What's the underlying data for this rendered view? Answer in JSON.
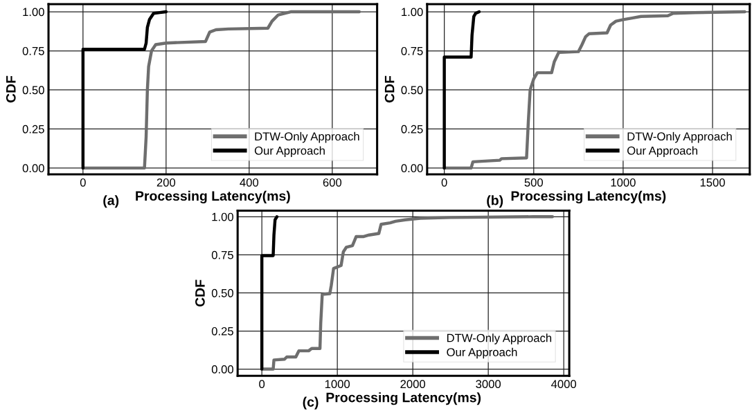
{
  "chart_data": [
    {
      "type": "line",
      "xlabel": "Processing Latency(ms)",
      "ylabel": "CDF",
      "annotations": [
        "(a)"
      ],
      "xlim": [
        -83,
        708
      ],
      "ylim": [
        -0.04,
        1.049
      ],
      "xticks": [
        0,
        200,
        400,
        600
      ],
      "yticks": [
        {
          "value": 0,
          "label": "0.00"
        },
        {
          "value": 0.25,
          "label": "0.25"
        },
        {
          "value": 0.5,
          "label": "0.50"
        },
        {
          "value": 0.75,
          "label": "0.75"
        },
        {
          "value": 1,
          "label": "1.00"
        }
      ],
      "grid": true,
      "legend": "bottom right",
      "series": [
        {
          "name": "DTW-Only Approach",
          "color": "#6e6e6e",
          "x": [
            0,
            148,
            152,
            155,
            158,
            165,
            175,
            200,
            295,
            305,
            320,
            350,
            445,
            455,
            470,
            500,
            665
          ],
          "values": [
            0,
            0,
            0.2,
            0.5,
            0.65,
            0.75,
            0.79,
            0.8,
            0.81,
            0.87,
            0.885,
            0.89,
            0.895,
            0.94,
            0.98,
            1.0,
            1.0
          ]
        },
        {
          "name": "Our Approach",
          "color": "#000000",
          "x": [
            0,
            0,
            148,
            152,
            155,
            160,
            170,
            185,
            200
          ],
          "values": [
            0,
            0.76,
            0.76,
            0.8,
            0.9,
            0.95,
            0.99,
            0.995,
            1.0
          ]
        }
      ]
    },
    {
      "type": "line",
      "xlabel": "Processing Latency(ms)",
      "ylabel": "CDF",
      "annotations": [
        "(b)"
      ],
      "xlim": [
        -96,
        1708
      ],
      "ylim": [
        -0.04,
        1.049
      ],
      "xticks": [
        0,
        500,
        1000,
        1500
      ],
      "yticks": [
        {
          "value": 0,
          "label": "0.00"
        },
        {
          "value": 0.25,
          "label": "0.25"
        },
        {
          "value": 0.5,
          "label": "0.50"
        },
        {
          "value": 0.75,
          "label": "0.75"
        },
        {
          "value": 1,
          "label": "1.00"
        }
      ],
      "grid": true,
      "legend": "bottom right",
      "series": [
        {
          "name": "DTW-Only Approach",
          "color": "#6e6e6e",
          "x": [
            0,
            150,
            160,
            310,
            320,
            460,
            470,
            480,
            500,
            520,
            600,
            615,
            640,
            750,
            770,
            790,
            810,
            910,
            930,
            960,
            1000,
            1050,
            1100,
            1250,
            1280,
            1400,
            1680
          ],
          "values": [
            0,
            0,
            0.04,
            0.05,
            0.06,
            0.065,
            0.3,
            0.5,
            0.57,
            0.61,
            0.61,
            0.68,
            0.74,
            0.745,
            0.79,
            0.84,
            0.86,
            0.865,
            0.915,
            0.94,
            0.95,
            0.96,
            0.97,
            0.975,
            0.99,
            0.995,
            1.0
          ]
        },
        {
          "name": "Our Approach",
          "color": "#000000",
          "x": [
            0,
            0,
            150,
            155,
            165,
            175,
            195
          ],
          "values": [
            0,
            0.71,
            0.71,
            0.85,
            0.97,
            0.99,
            1.0
          ]
        }
      ]
    },
    {
      "type": "line",
      "xlabel": "Processing Latency(ms)",
      "ylabel": "CDF",
      "annotations": [
        "(c)"
      ],
      "xlim": [
        -321,
        4073
      ],
      "ylim": [
        -0.044,
        1.04
      ],
      "xticks": [
        0,
        1000,
        2000,
        3000,
        4000
      ],
      "yticks": [
        {
          "value": 0,
          "label": "0.00"
        },
        {
          "value": 0.25,
          "label": "0.25"
        },
        {
          "value": 0.5,
          "label": "0.50"
        },
        {
          "value": 0.75,
          "label": "0.75"
        },
        {
          "value": 1,
          "label": "1.00"
        }
      ],
      "grid": true,
      "legend": "bottom right",
      "series": [
        {
          "name": "DTW-Only Approach",
          "color": "#6e6e6e",
          "x": [
            0,
            150,
            160,
            300,
            330,
            450,
            490,
            620,
            660,
            770,
            780,
            800,
            900,
            920,
            950,
            1050,
            1080,
            1120,
            1200,
            1250,
            1350,
            1420,
            1550,
            1580,
            1700,
            1770,
            1900,
            2100,
            2500,
            3600,
            3850
          ],
          "values": [
            0,
            0,
            0.06,
            0.065,
            0.08,
            0.08,
            0.12,
            0.12,
            0.135,
            0.135,
            0.3,
            0.49,
            0.495,
            0.55,
            0.66,
            0.68,
            0.77,
            0.8,
            0.81,
            0.87,
            0.87,
            0.88,
            0.89,
            0.95,
            0.96,
            0.97,
            0.98,
            0.99,
            0.995,
            1.0,
            1.0
          ]
        },
        {
          "name": "Our Approach",
          "color": "#000000",
          "x": [
            0,
            0,
            150,
            160,
            175,
            200
          ],
          "values": [
            0,
            0.745,
            0.745,
            0.88,
            0.98,
            1.0
          ]
        }
      ]
    }
  ]
}
